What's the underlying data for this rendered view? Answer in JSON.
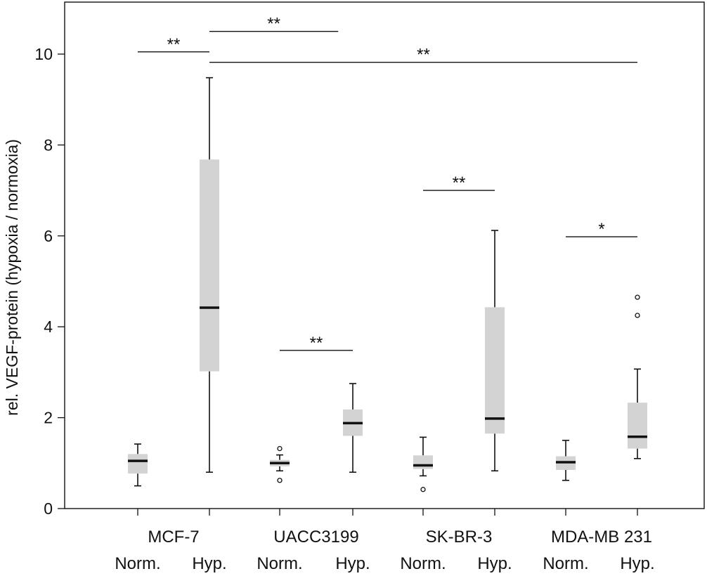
{
  "chart_data": {
    "type": "box",
    "title": "",
    "ylabel": "rel. VEGF-protein (hypoxia / normoxia)",
    "xlabel": "",
    "ylim": [
      0,
      11
    ],
    "yticks": [
      0,
      2,
      4,
      6,
      8,
      10
    ],
    "grid": false,
    "legend": "none",
    "groups": [
      "MCF-7",
      "UACC3199",
      "SK-BR-3",
      "MDA-MB 231"
    ],
    "conditions": [
      "Norm.",
      "Hyp."
    ],
    "boxes": [
      {
        "group": "MCF-7",
        "condition": "Norm.",
        "min": 0.5,
        "q1": 0.77,
        "median": 1.05,
        "q3": 1.2,
        "max": 1.42,
        "outliers": []
      },
      {
        "group": "MCF-7",
        "condition": "Hyp.",
        "min": 0.8,
        "q1": 3.02,
        "median": 4.42,
        "q3": 7.68,
        "max": 9.48,
        "outliers": []
      },
      {
        "group": "UACC3199",
        "condition": "Norm.",
        "min": 0.83,
        "q1": 0.93,
        "median": 1.0,
        "q3": 1.07,
        "max": 1.18,
        "outliers": [
          1.32,
          0.62
        ]
      },
      {
        "group": "UACC3199",
        "condition": "Hyp.",
        "min": 0.8,
        "q1": 1.6,
        "median": 1.88,
        "q3": 2.18,
        "max": 2.75,
        "outliers": []
      },
      {
        "group": "SK-BR-3",
        "condition": "Norm.",
        "min": 0.72,
        "q1": 0.87,
        "median": 0.95,
        "q3": 1.17,
        "max": 1.57,
        "outliers": [
          0.42
        ]
      },
      {
        "group": "SK-BR-3",
        "condition": "Hyp.",
        "min": 0.83,
        "q1": 1.65,
        "median": 1.98,
        "q3": 4.43,
        "max": 6.12,
        "outliers": []
      },
      {
        "group": "MDA-MB 231",
        "condition": "Norm.",
        "min": 0.62,
        "q1": 0.85,
        "median": 1.02,
        "q3": 1.15,
        "max": 1.5,
        "outliers": []
      },
      {
        "group": "MDA-MB 231",
        "condition": "Hyp.",
        "min": 1.1,
        "q1": 1.32,
        "median": 1.58,
        "q3": 2.33,
        "max": 3.07,
        "outliers": [
          4.25,
          4.65
        ]
      }
    ],
    "annotations": [
      {
        "text": "**",
        "from": 0,
        "to": 1,
        "y": 10.05
      },
      {
        "text": "**",
        "from": 1,
        "to": 2.8,
        "y": 10.5
      },
      {
        "text": "**",
        "from": 1,
        "to": 7,
        "y": 9.82
      },
      {
        "text": "**",
        "from": 2,
        "to": 3,
        "y": 3.48
      },
      {
        "text": "**",
        "from": 4,
        "to": 5,
        "y": 7.0
      },
      {
        "text": "*",
        "from": 6,
        "to": 7,
        "y": 5.98
      }
    ],
    "colors": {
      "box_fill": "#d3d3d3",
      "median": "#111111",
      "whisker": "#111111"
    }
  }
}
